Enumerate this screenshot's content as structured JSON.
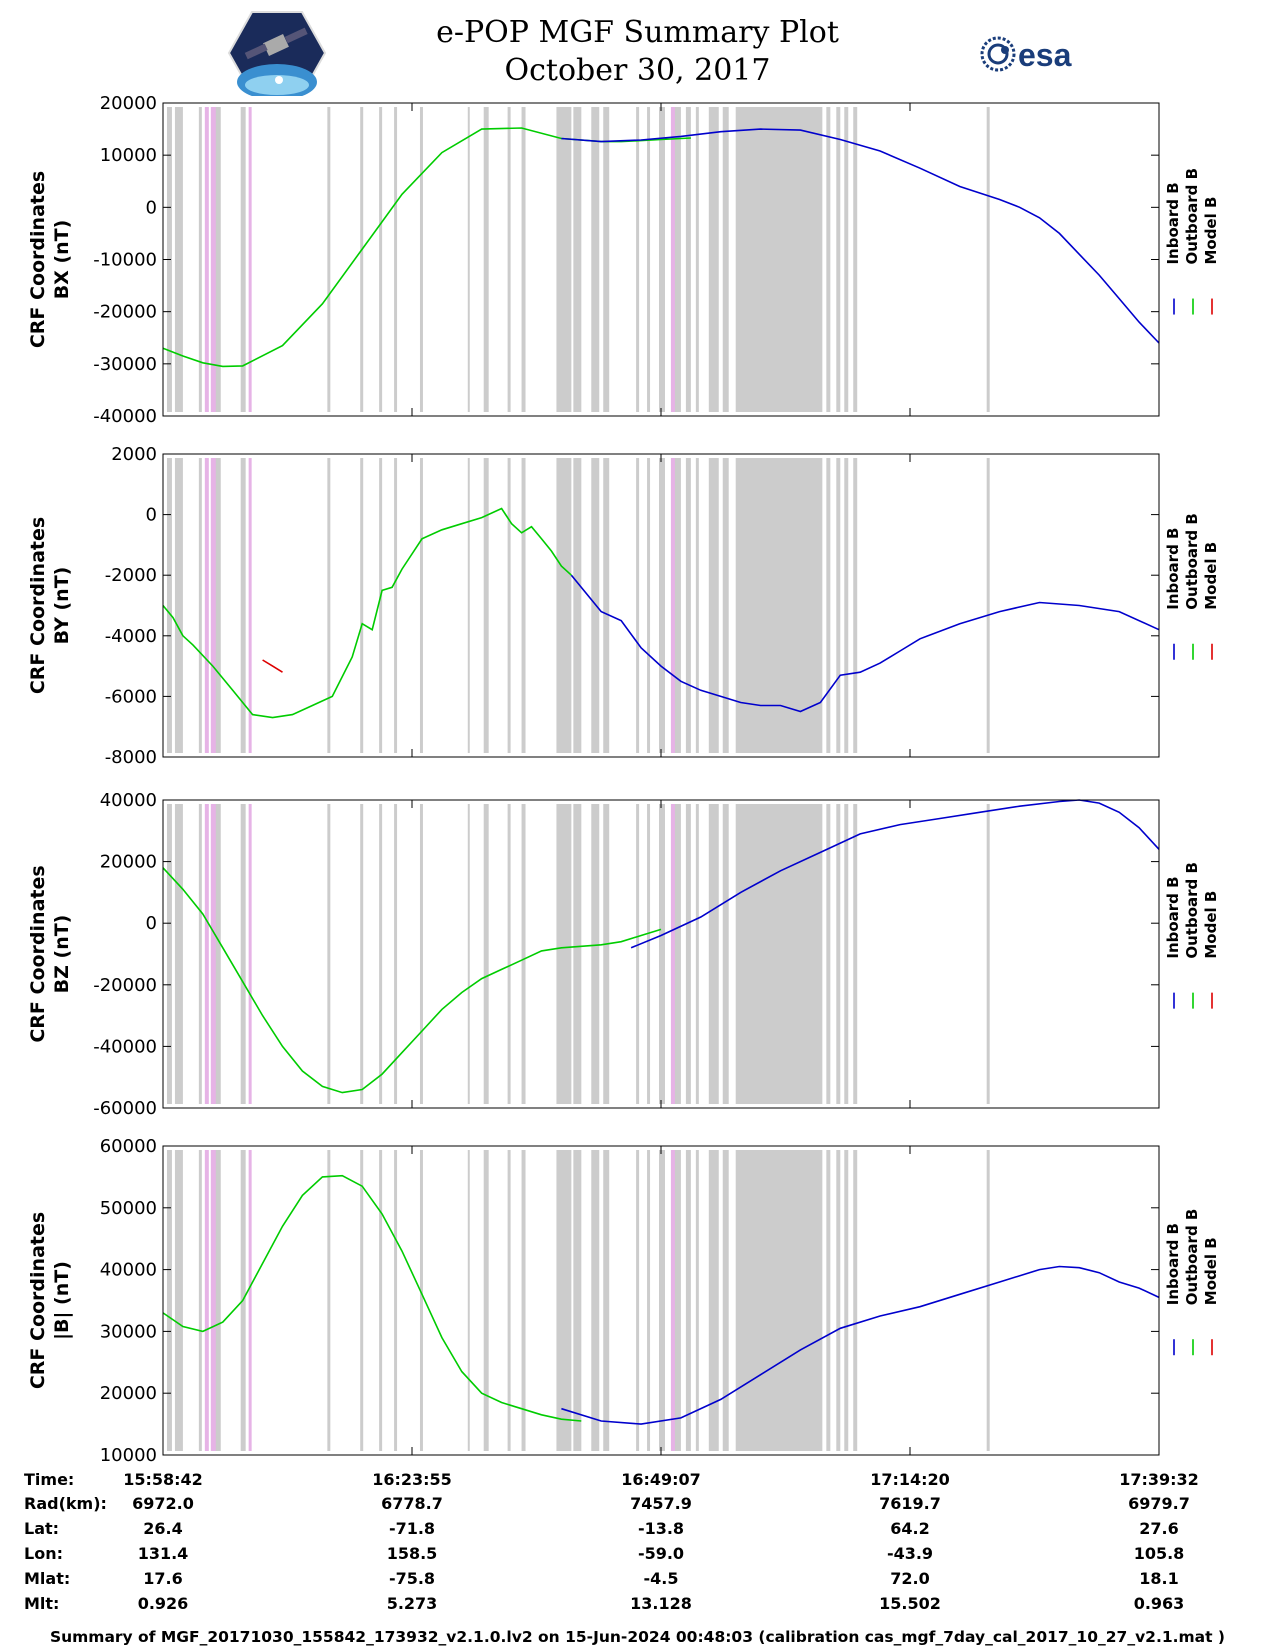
{
  "header": {
    "title": "e-POP MGF Summary Plot",
    "date": "October 30, 2017",
    "mission_logo_icon": "satellite-hexagon-logo",
    "agency_logo_text": "esa"
  },
  "chart_data": [
    {
      "type": "line",
      "ylabel_line1": "CRF Coordinates",
      "ylabel_line2": "BX (nT)",
      "ylim": [
        -40000,
        20000
      ],
      "yticks": [
        "20000",
        "10000",
        "0",
        "-10000",
        "-20000",
        "-30000",
        "-40000"
      ],
      "ytick_values": [
        20000,
        10000,
        0,
        -10000,
        -20000,
        -30000,
        -40000
      ],
      "legend": [
        "Inboard B",
        "Outboard B",
        "Model B"
      ],
      "series": [
        {
          "name": "Outboard B",
          "color": "#00cc00",
          "x": [
            0,
            0.02,
            0.04,
            0.06,
            0.08,
            0.12,
            0.16,
            0.2,
            0.24,
            0.28,
            0.32,
            0.36,
            0.4,
            0.44,
            0.46,
            0.48,
            0.5,
            0.52,
            0.53
          ],
          "y": [
            -27000,
            -28500,
            -29800,
            -30500,
            -30400,
            -26500,
            -18500,
            -8000,
            2500,
            10500,
            15000,
            15200,
            13200,
            12600,
            12600,
            12800,
            13000,
            13200,
            13300
          ]
        },
        {
          "name": "Inboard B",
          "color": "#0000cc",
          "x": [
            0.4,
            0.44,
            0.48,
            0.52,
            0.56,
            0.6,
            0.64,
            0.68,
            0.72,
            0.76,
            0.8,
            0.84,
            0.86,
            0.88,
            0.9,
            0.92,
            0.94,
            0.96,
            0.98,
            1.0
          ],
          "y": [
            13200,
            12600,
            12900,
            13600,
            14500,
            15000,
            14800,
            13000,
            10800,
            7500,
            4000,
            1500,
            0,
            -2000,
            -5000,
            -9000,
            -13000,
            -17500,
            -22000,
            -26000
          ]
        }
      ]
    },
    {
      "type": "line",
      "ylabel_line1": "CRF Coordinates",
      "ylabel_line2": "BY (nT)",
      "ylim": [
        -8000,
        2000
      ],
      "yticks": [
        "2000",
        "0",
        "-2000",
        "-4000",
        "-6000",
        "-8000"
      ],
      "ytick_values": [
        2000,
        0,
        -2000,
        -4000,
        -6000,
        -8000
      ],
      "legend": [
        "Inboard B",
        "Outboard B",
        "Model B"
      ],
      "series": [
        {
          "name": "Outboard B",
          "color": "#00cc00",
          "x": [
            0,
            0.01,
            0.02,
            0.03,
            0.05,
            0.07,
            0.09,
            0.11,
            0.13,
            0.15,
            0.17,
            0.19,
            0.2,
            0.21,
            0.22,
            0.23,
            0.24,
            0.26,
            0.28,
            0.3,
            0.32,
            0.34,
            0.35,
            0.36,
            0.37,
            0.38,
            0.39,
            0.4,
            0.41
          ],
          "y": [
            -3000,
            -3400,
            -4000,
            -4300,
            -5000,
            -5800,
            -6600,
            -6700,
            -6600,
            -6300,
            -6000,
            -4700,
            -3600,
            -3800,
            -2500,
            -2400,
            -1800,
            -800,
            -500,
            -300,
            -100,
            200,
            -300,
            -600,
            -400,
            -800,
            -1200,
            -1700,
            -2000
          ]
        },
        {
          "name": "Inboard B",
          "color": "#0000cc",
          "x": [
            0.41,
            0.44,
            0.46,
            0.48,
            0.5,
            0.52,
            0.54,
            0.56,
            0.58,
            0.6,
            0.62,
            0.64,
            0.66,
            0.68,
            0.7,
            0.72,
            0.74,
            0.76,
            0.8,
            0.84,
            0.88,
            0.92,
            0.96,
            1.0
          ],
          "y": [
            -2000,
            -3200,
            -3500,
            -4400,
            -5000,
            -5500,
            -5800,
            -6000,
            -6200,
            -6300,
            -6300,
            -6500,
            -6200,
            -5300,
            -5200,
            -4900,
            -4500,
            -4100,
            -3600,
            -3200,
            -2900,
            -3000,
            -3200,
            -3800
          ]
        },
        {
          "name": "Model B",
          "color": "#dd0000",
          "x": [
            0.1,
            0.11,
            0.12
          ],
          "y": [
            -4800,
            -5000,
            -5200
          ]
        }
      ]
    },
    {
      "type": "line",
      "ylabel_line1": "CRF Coordinates",
      "ylabel_line2": "BZ (nT)",
      "ylim": [
        -60000,
        40000
      ],
      "yticks": [
        "40000",
        "20000",
        "0",
        "-20000",
        "-40000",
        "-60000"
      ],
      "ytick_values": [
        40000,
        20000,
        0,
        -20000,
        -40000,
        -60000
      ],
      "legend": [
        "Inboard B",
        "Outboard B",
        "Model B"
      ],
      "series": [
        {
          "name": "Outboard B",
          "color": "#00cc00",
          "x": [
            0,
            0.02,
            0.04,
            0.06,
            0.08,
            0.1,
            0.12,
            0.14,
            0.16,
            0.18,
            0.2,
            0.22,
            0.24,
            0.26,
            0.28,
            0.3,
            0.32,
            0.34,
            0.36,
            0.38,
            0.4,
            0.42,
            0.44,
            0.46,
            0.48,
            0.5
          ],
          "y": [
            18000,
            11000,
            3000,
            -8000,
            -19000,
            -30000,
            -40000,
            -48000,
            -53000,
            -55000,
            -54000,
            -49000,
            -42000,
            -35000,
            -28000,
            -22500,
            -18000,
            -15000,
            -12000,
            -9000,
            -8000,
            -7500,
            -7000,
            -6000,
            -4000,
            -2000
          ]
        },
        {
          "name": "Inboard B",
          "color": "#0000cc",
          "x": [
            0.47,
            0.5,
            0.54,
            0.58,
            0.62,
            0.66,
            0.7,
            0.74,
            0.78,
            0.82,
            0.86,
            0.9,
            0.92,
            0.94,
            0.96,
            0.98,
            1.0
          ],
          "y": [
            -8000,
            -4000,
            2000,
            10000,
            17000,
            23000,
            29000,
            32000,
            34000,
            36000,
            38000,
            39500,
            40000,
            39000,
            36000,
            31000,
            24000
          ]
        }
      ]
    },
    {
      "type": "line",
      "ylabel_line1": "CRF Coordinates",
      "ylabel_line2": "|B| (nT)",
      "ylim": [
        10000,
        60000
      ],
      "yticks": [
        "60000",
        "50000",
        "40000",
        "30000",
        "20000",
        "10000"
      ],
      "ytick_values": [
        60000,
        50000,
        40000,
        30000,
        20000,
        10000
      ],
      "legend": [
        "Inboard B",
        "Outboard B",
        "Model B"
      ],
      "series": [
        {
          "name": "Outboard B",
          "color": "#00cc00",
          "x": [
            0,
            0.02,
            0.04,
            0.06,
            0.08,
            0.1,
            0.12,
            0.14,
            0.16,
            0.18,
            0.2,
            0.22,
            0.24,
            0.26,
            0.28,
            0.3,
            0.32,
            0.34,
            0.36,
            0.38,
            0.4,
            0.42
          ],
          "y": [
            33000,
            30800,
            30000,
            31500,
            35000,
            41000,
            47000,
            52000,
            55000,
            55200,
            53500,
            49000,
            43000,
            36000,
            29000,
            23500,
            20000,
            18500,
            17500,
            16500,
            15800,
            15500
          ]
        },
        {
          "name": "Inboard B",
          "color": "#0000cc",
          "x": [
            0.4,
            0.44,
            0.48,
            0.52,
            0.56,
            0.6,
            0.64,
            0.68,
            0.72,
            0.76,
            0.8,
            0.84,
            0.88,
            0.9,
            0.92,
            0.94,
            0.96,
            0.98,
            1.0
          ],
          "y": [
            17500,
            15500,
            15000,
            16000,
            19000,
            23000,
            27000,
            30500,
            32500,
            34000,
            36000,
            38000,
            40000,
            40500,
            40300,
            39500,
            38000,
            37000,
            35500
          ]
        }
      ]
    }
  ],
  "x_axis": {
    "ticks": [
      0,
      0.25,
      0.5,
      0.75,
      1.0
    ]
  },
  "ephemeris": {
    "labels": [
      "Time:",
      "Rad(km):",
      "Lat:",
      "Lon:",
      "Mlat:",
      "Mlt:"
    ],
    "columns": [
      [
        "15:58:42",
        "6972.0",
        "26.4",
        "131.4",
        "17.6",
        "0.926"
      ],
      [
        "16:23:55",
        "6778.7",
        "-71.8",
        "158.5",
        "-75.8",
        "5.273"
      ],
      [
        "16:49:07",
        "7457.9",
        "-13.8",
        "-59.0",
        "-4.5",
        "13.128"
      ],
      [
        "17:14:20",
        "7619.7",
        "64.2",
        "-43.9",
        "72.0",
        "15.502"
      ],
      [
        "17:39:32",
        "6979.7",
        "27.6",
        "105.8",
        "18.1",
        "0.963"
      ]
    ]
  },
  "footer": {
    "text": "Summary of MGF_20171030_155842_173932_v2.1.0.lv2 on 15-Jun-2024 00:48:03 (calibration cas_mgf_7day_cal_2017_10_27_v2.1.mat )"
  },
  "background_bands": {
    "gray_color": "#cccccc",
    "magenta_color": "#e6b3e6",
    "gray_bands": [
      [
        0.004,
        0.009
      ],
      [
        0.012,
        0.02
      ],
      [
        0.036,
        0.039
      ],
      [
        0.052,
        0.058
      ],
      [
        0.078,
        0.083
      ],
      [
        0.165,
        0.168
      ],
      [
        0.198,
        0.201
      ],
      [
        0.217,
        0.22
      ],
      [
        0.232,
        0.235
      ],
      [
        0.258,
        0.261
      ],
      [
        0.306,
        0.308
      ],
      [
        0.322,
        0.327
      ],
      [
        0.346,
        0.349
      ],
      [
        0.36,
        0.364
      ],
      [
        0.395,
        0.41
      ],
      [
        0.412,
        0.42
      ],
      [
        0.43,
        0.438
      ],
      [
        0.442,
        0.448
      ],
      [
        0.475,
        0.478
      ],
      [
        0.486,
        0.489
      ],
      [
        0.498,
        0.504
      ],
      [
        0.51,
        0.52
      ],
      [
        0.525,
        0.53
      ],
      [
        0.535,
        0.538
      ],
      [
        0.548,
        0.558
      ],
      [
        0.562,
        0.568
      ],
      [
        0.575,
        0.662
      ],
      [
        0.666,
        0.67
      ],
      [
        0.676,
        0.68
      ],
      [
        0.684,
        0.688
      ],
      [
        0.693,
        0.697
      ],
      [
        0.827,
        0.83
      ]
    ],
    "magenta_bands": [
      [
        0.042,
        0.046
      ],
      [
        0.048,
        0.053
      ],
      [
        0.086,
        0.089
      ],
      [
        0.51,
        0.514
      ]
    ]
  }
}
